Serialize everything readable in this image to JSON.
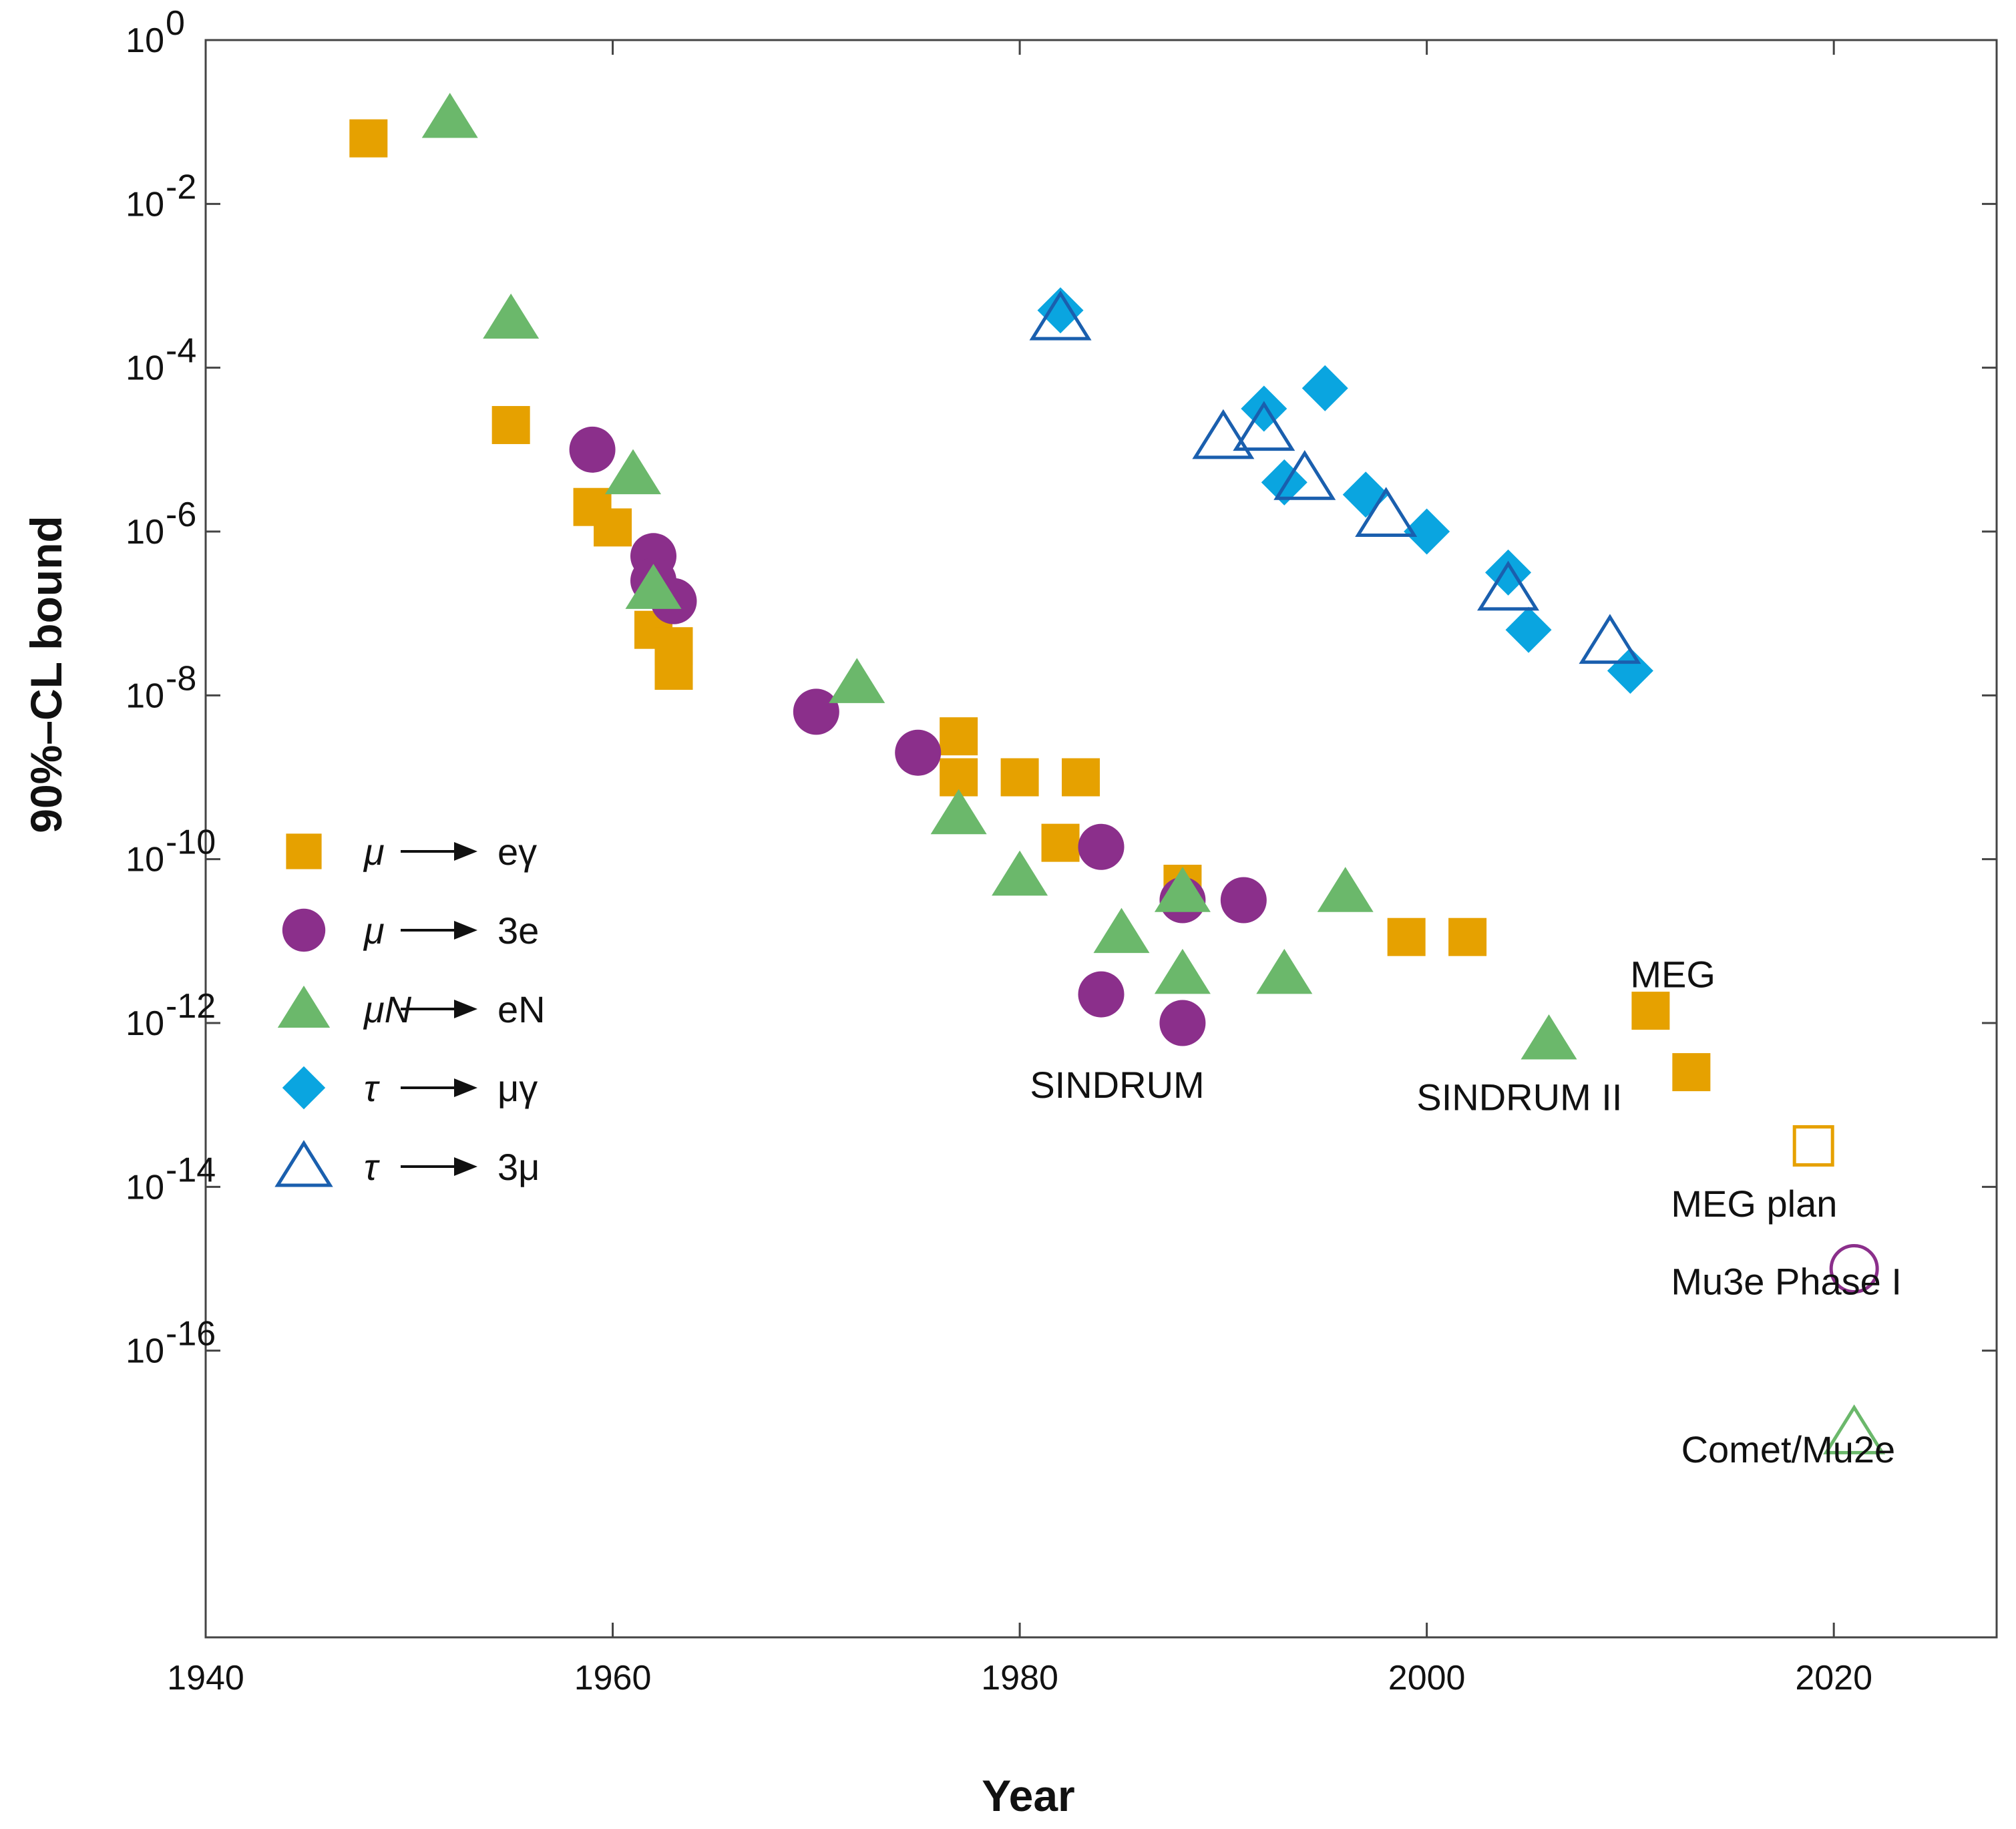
{
  "chart_data": {
    "type": "scatter",
    "title": "",
    "xlabel": "Year",
    "ylabel": "90%–CL bound",
    "xlim": [
      1940,
      2028
    ],
    "ylim_log10": [
      -19.5,
      0
    ],
    "x_ticks": [
      1940,
      1960,
      1980,
      2000,
      2020
    ],
    "y_ticks": [
      {
        "exp": 0,
        "label": "10",
        "sup": "0"
      },
      {
        "exp": -2,
        "label": "10",
        "sup": "-2"
      },
      {
        "exp": -4,
        "label": "10",
        "sup": "-4"
      },
      {
        "exp": -6,
        "label": "10",
        "sup": "-6"
      },
      {
        "exp": -8,
        "label": "10",
        "sup": "-8"
      },
      {
        "exp": -10,
        "label": "10",
        "sup": "-10"
      },
      {
        "exp": -12,
        "label": "10",
        "sup": "-12"
      },
      {
        "exp": -14,
        "label": "10",
        "sup": "-14"
      },
      {
        "exp": -16,
        "label": "10",
        "sup": "-16"
      }
    ],
    "series": [
      {
        "name": "mu_to_e_gamma",
        "legend": {
          "lhs": "μ",
          "rhs": "eγ"
        },
        "marker": "square",
        "filled": true,
        "color": "#E6A100",
        "points": [
          {
            "x": 1948,
            "exp": -1.2
          },
          {
            "x": 1955,
            "exp": -4.7
          },
          {
            "x": 1959,
            "exp": -5.7
          },
          {
            "x": 1960,
            "exp": -5.95
          },
          {
            "x": 1962,
            "exp": -7.2
          },
          {
            "x": 1963,
            "exp": -7.4
          },
          {
            "x": 1963,
            "exp": -7.7
          },
          {
            "x": 1977,
            "exp": -8.5
          },
          {
            "x": 1977,
            "exp": -9.0
          },
          {
            "x": 1980,
            "exp": -9.0
          },
          {
            "x": 1983,
            "exp": -9.0
          },
          {
            "x": 1982,
            "exp": -9.8
          },
          {
            "x": 1988,
            "exp": -10.3
          },
          {
            "x": 1999,
            "exp": -10.95
          },
          {
            "x": 2002,
            "exp": -10.95
          },
          {
            "x": 2011,
            "exp": -11.85
          },
          {
            "x": 2013,
            "exp": -12.6
          }
        ]
      },
      {
        "name": "mu_to_3e",
        "legend": {
          "lhs": "μ",
          "rhs": "3e"
        },
        "marker": "circle",
        "filled": true,
        "color": "#8B2F8B",
        "points": [
          {
            "x": 1959,
            "exp": -5.0
          },
          {
            "x": 1962,
            "exp": -6.3
          },
          {
            "x": 1962,
            "exp": -6.6
          },
          {
            "x": 1963,
            "exp": -6.85
          },
          {
            "x": 1970,
            "exp": -8.2
          },
          {
            "x": 1975,
            "exp": -8.7
          },
          {
            "x": 1984,
            "exp": -9.85
          },
          {
            "x": 1988,
            "exp": -10.5
          },
          {
            "x": 1991,
            "exp": -10.5
          },
          {
            "x": 1984,
            "exp": -11.65
          },
          {
            "x": 1988,
            "exp": -12.0
          }
        ]
      },
      {
        "name": "muN_to_eN",
        "legend": {
          "lhs": "μN",
          "rhs": "eN"
        },
        "marker": "triangle",
        "filled": true,
        "color": "#6BB86B",
        "points": [
          {
            "x": 1952,
            "exp": -0.95
          },
          {
            "x": 1955,
            "exp": -3.4
          },
          {
            "x": 1961,
            "exp": -5.3
          },
          {
            "x": 1962,
            "exp": -6.7
          },
          {
            "x": 1972,
            "exp": -7.85
          },
          {
            "x": 1977,
            "exp": -9.45
          },
          {
            "x": 1980,
            "exp": -10.2
          },
          {
            "x": 1985,
            "exp": -10.9
          },
          {
            "x": 1988,
            "exp": -10.4
          },
          {
            "x": 1988,
            "exp": -11.4
          },
          {
            "x": 1993,
            "exp": -11.4
          },
          {
            "x": 1996,
            "exp": -10.4
          },
          {
            "x": 2006,
            "exp": -12.2
          }
        ]
      },
      {
        "name": "tau_to_mu_gamma",
        "legend": {
          "lhs": "τ",
          "rhs": "μγ"
        },
        "marker": "diamond",
        "filled": true,
        "color": "#0AA5E0",
        "points": [
          {
            "x": 1982,
            "exp": -3.3
          },
          {
            "x": 1992,
            "exp": -4.5
          },
          {
            "x": 1995,
            "exp": -4.25
          },
          {
            "x": 1993,
            "exp": -5.4
          },
          {
            "x": 1997,
            "exp": -5.55
          },
          {
            "x": 2000,
            "exp": -6.0
          },
          {
            "x": 2004,
            "exp": -6.5
          },
          {
            "x": 2005,
            "exp": -7.2
          },
          {
            "x": 2010,
            "exp": -7.7
          }
        ]
      },
      {
        "name": "tau_to_3mu",
        "legend": {
          "lhs": "τ",
          "rhs": "3μ"
        },
        "marker": "triangle",
        "filled": false,
        "color": "#1A5FAE",
        "points": [
          {
            "x": 1982,
            "exp": -3.4
          },
          {
            "x": 1990,
            "exp": -4.85
          },
          {
            "x": 1992,
            "exp": -4.75
          },
          {
            "x": 1994,
            "exp": -5.35
          },
          {
            "x": 1998,
            "exp": -5.8
          },
          {
            "x": 2004,
            "exp": -6.7
          },
          {
            "x": 2009,
            "exp": -7.35
          }
        ]
      },
      {
        "name": "future_plans",
        "legend": null,
        "points": [
          {
            "x": 2019,
            "exp": -13.5,
            "marker": "square",
            "filled": false,
            "color": "#E6A100"
          },
          {
            "x": 2021,
            "exp": -15.0,
            "marker": "circle",
            "filled": false,
            "color": "#8B2F8B"
          },
          {
            "x": 2021,
            "exp": -17.0,
            "marker": "triangle",
            "filled": false,
            "color": "#6BB86B"
          }
        ]
      }
    ],
    "annotations": [
      {
        "text": "MEG",
        "x": 2010,
        "exp": -11.4
      },
      {
        "text": "SINDRUM",
        "x": 1980.5,
        "exp": -12.75
      },
      {
        "text": "SINDRUM II",
        "x": 1999.5,
        "exp": -12.9
      },
      {
        "text": "MEG plan",
        "x": 2012,
        "exp": -14.2
      },
      {
        "text": "Mu3e Phase I",
        "x": 2012,
        "exp": -15.15
      },
      {
        "text": "Comet/Mu2e",
        "x": 2012.5,
        "exp": -17.2
      }
    ]
  }
}
